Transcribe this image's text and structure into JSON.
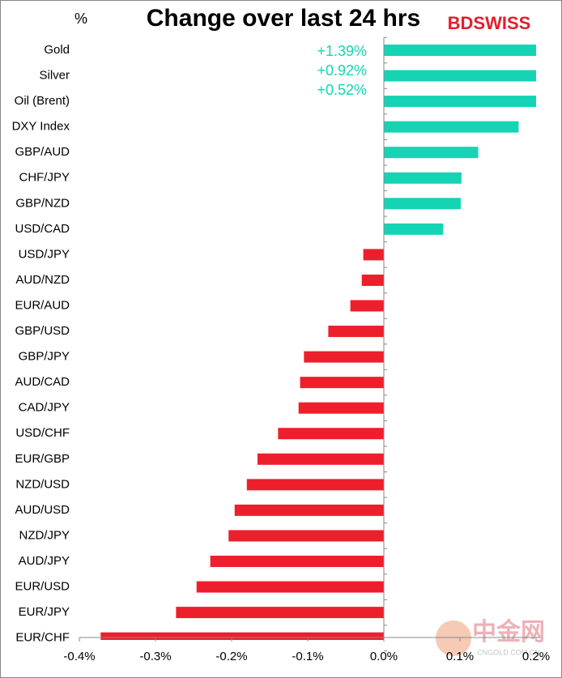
{
  "chart_data": {
    "type": "barh",
    "title": "Change over last 24 hrs",
    "y_label": "%",
    "logo": "BDSWISS",
    "watermark": [
      "中金网",
      "CNGOLD.COM.CN"
    ],
    "categories": [
      "Gold",
      "Silver",
      "Oil (Brent)",
      "DXY Index",
      "GBP/AUD",
      "CHF/JPY",
      "GBP/NZD",
      "USD/CAD",
      "USD/JPY",
      "AUD/NZD",
      "EUR/AUD",
      "GBP/USD",
      "GBP/JPY",
      "AUD/CAD",
      "CAD/JPY",
      "USD/CHF",
      "EUR/GBP",
      "NZD/USD",
      "AUD/USD",
      "NZD/JPY",
      "AUD/JPY",
      "EUR/USD",
      "EUR/JPY",
      "EUR/CHF"
    ],
    "values": [
      1.39,
      0.92,
      0.52,
      0.177,
      0.124,
      0.102,
      0.101,
      0.078,
      -0.027,
      -0.029,
      -0.044,
      -0.073,
      -0.105,
      -0.11,
      -0.112,
      -0.139,
      -0.166,
      -0.18,
      -0.196,
      -0.204,
      -0.228,
      -0.246,
      -0.273,
      -0.372
    ],
    "value_labels": [
      "+1.39%",
      "+0.92%",
      "+0.52%",
      null,
      null,
      null,
      null,
      null,
      null,
      null,
      null,
      null,
      null,
      null,
      null,
      null,
      null,
      null,
      null,
      null,
      null,
      null,
      null,
      null
    ],
    "positive_color": "#14d4b4",
    "negative_color": "#ee1f2c",
    "xlim": [
      -0.4,
      0.2
    ],
    "xticks": [
      {
        "value": -0.4,
        "label": "-0.4%"
      },
      {
        "value": -0.3,
        "label": "-0.3%"
      },
      {
        "value": -0.2,
        "label": "-0.2%"
      },
      {
        "value": -0.1,
        "label": "-0.1%"
      },
      {
        "value": 0,
        "label": "0.0%"
      },
      {
        "value": 0.1,
        "label": "0.1%"
      },
      {
        "value": 0.2,
        "label": "0.2%"
      }
    ],
    "grid": false
  }
}
